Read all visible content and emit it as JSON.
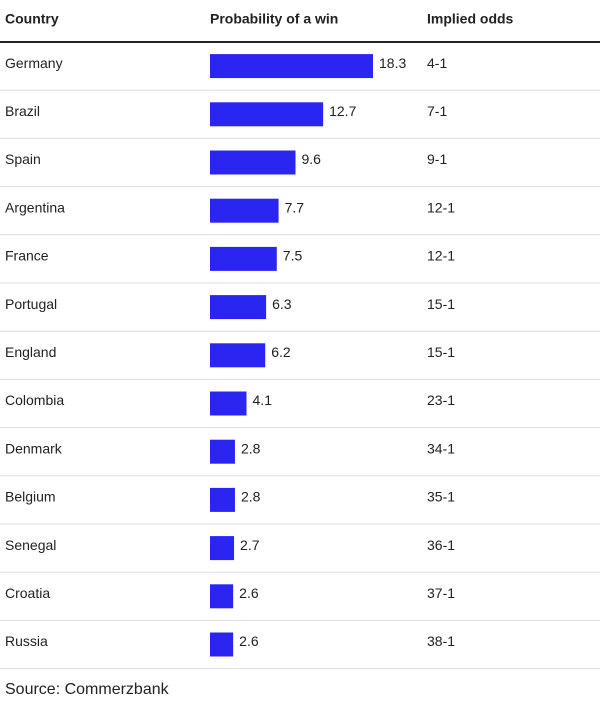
{
  "chart_data": {
    "type": "bar",
    "orientation": "horizontal",
    "headers": [
      "Country",
      "Probability of a win",
      "Implied odds"
    ],
    "categories": [
      "Germany",
      "Brazil",
      "Spain",
      "Argentina",
      "France",
      "Portugal",
      "England",
      "Colombia",
      "Denmark",
      "Belgium",
      "Senegal",
      "Croatia",
      "Russia"
    ],
    "values": [
      18.3,
      12.7,
      9.6,
      7.7,
      7.5,
      6.3,
      6.2,
      4.1,
      2.8,
      2.8,
      2.7,
      2.6,
      2.6
    ],
    "odds": [
      "4-1",
      "7-1",
      "9-1",
      "12-1",
      "12-1",
      "15-1",
      "15-1",
      "23-1",
      "34-1",
      "35-1",
      "36-1",
      "37-1",
      "38-1"
    ],
    "color": "#2b25f2",
    "source": "Source: Commerzbank"
  }
}
